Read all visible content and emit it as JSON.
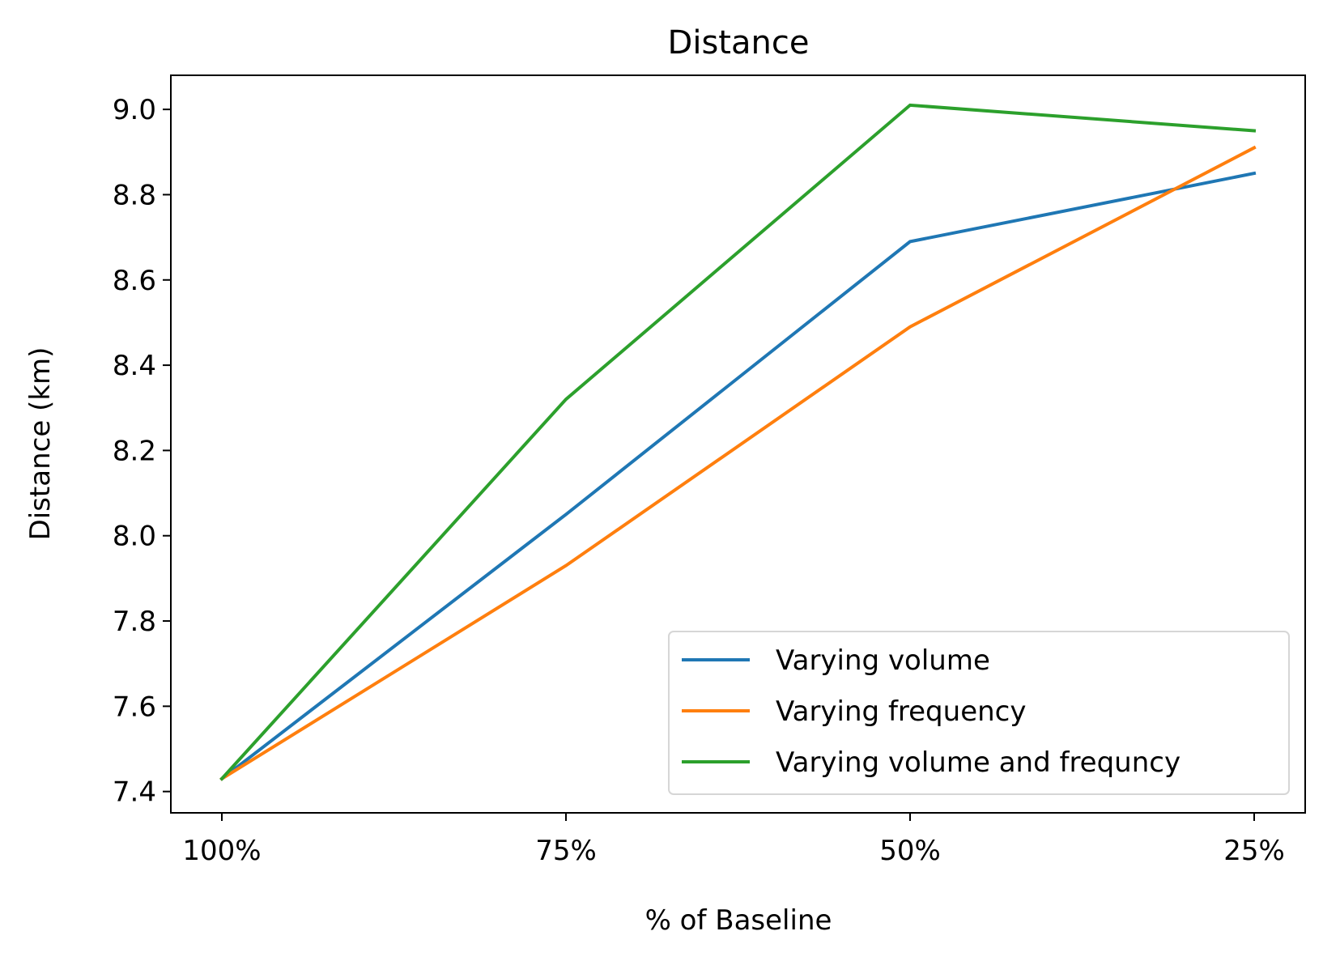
{
  "chart_data": {
    "type": "line",
    "title": "Distance",
    "xlabel": "% of Baseline",
    "ylabel": "Distance (km)",
    "categories": [
      "100%",
      "75%",
      "50%",
      "25%"
    ],
    "ylim": [
      7.35,
      9.08
    ],
    "yticks": [
      "7.4",
      "7.6",
      "7.8",
      "8.0",
      "8.2",
      "8.4",
      "8.6",
      "8.8",
      "9.0"
    ],
    "grid": false,
    "legend_position": "lower-right",
    "series": [
      {
        "name": "Varying volume",
        "color": "#1f77b4",
        "values": [
          7.43,
          8.05,
          8.69,
          8.85
        ]
      },
      {
        "name": "Varying frequency",
        "color": "#ff7f0e",
        "values": [
          7.43,
          7.93,
          8.49,
          8.91
        ]
      },
      {
        "name": "Varying volume and frequncy",
        "color": "#2ca02c",
        "values": [
          7.43,
          8.32,
          9.01,
          8.95
        ]
      }
    ]
  }
}
